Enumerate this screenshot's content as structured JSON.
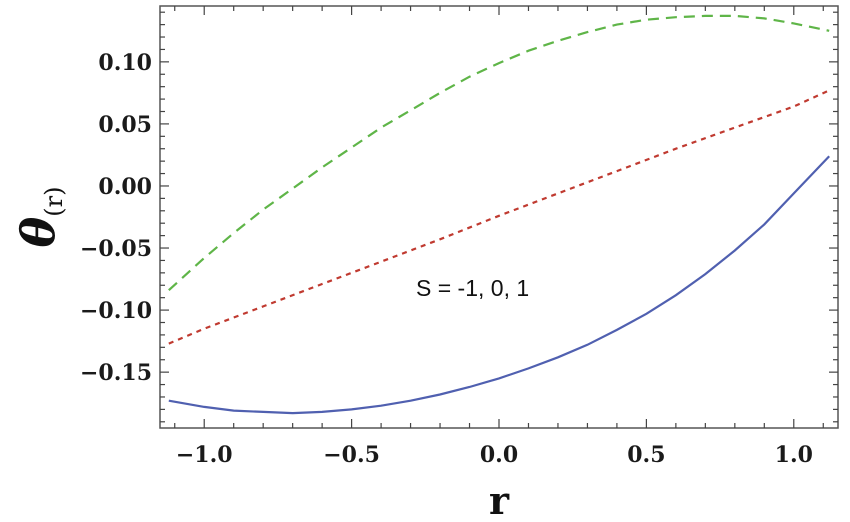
{
  "chart_data": {
    "type": "line",
    "xlabel": "r",
    "ylabel": {
      "symbol": "θ",
      "subscript": "(r)"
    },
    "xlim": [
      -1.15,
      1.15
    ],
    "ylim": [
      -0.195,
      0.145
    ],
    "xticks": [
      -1.0,
      -0.5,
      0.0,
      0.5,
      1.0
    ],
    "xtick_labels": [
      "−1.0",
      "−0.5",
      "0.0",
      "0.5",
      "1.0"
    ],
    "yticks": [
      -0.15,
      -0.1,
      -0.05,
      0.0,
      0.05,
      0.1
    ],
    "ytick_labels": [
      "−0.15",
      "−0.10",
      "−0.05",
      "0.00",
      "0.05",
      "0.10"
    ],
    "annotation": "S = -1, 0, 1",
    "grid": false,
    "series": [
      {
        "color": "#5060b0",
        "dash": "solid",
        "x": [
          -1.12,
          -1.0,
          -0.9,
          -0.8,
          -0.7,
          -0.6,
          -0.5,
          -0.4,
          -0.3,
          -0.2,
          -0.1,
          0.0,
          0.1,
          0.2,
          0.3,
          0.4,
          0.5,
          0.6,
          0.7,
          0.8,
          0.9,
          1.0,
          1.12
        ],
        "y": [
          -0.173,
          -0.178,
          -0.181,
          -0.182,
          -0.183,
          -0.182,
          -0.18,
          -0.177,
          -0.173,
          -0.168,
          -0.162,
          -0.155,
          -0.147,
          -0.138,
          -0.128,
          -0.116,
          -0.103,
          -0.088,
          -0.071,
          -0.052,
          -0.031,
          -0.006,
          0.024
        ]
      },
      {
        "color": "#c03a30",
        "dash": "dotted",
        "x": [
          -1.12,
          -1.0,
          -0.8,
          -0.6,
          -0.4,
          -0.2,
          0.0,
          0.2,
          0.4,
          0.6,
          0.8,
          1.0,
          1.12
        ],
        "y": [
          -0.127,
          -0.115,
          -0.097,
          -0.079,
          -0.061,
          -0.043,
          -0.024,
          -0.006,
          0.012,
          0.03,
          0.047,
          0.064,
          0.077
        ]
      },
      {
        "color": "#5fb548",
        "dash": "dashed",
        "x": [
          -1.12,
          -1.0,
          -0.9,
          -0.8,
          -0.7,
          -0.6,
          -0.5,
          -0.4,
          -0.3,
          -0.2,
          -0.1,
          0.0,
          0.1,
          0.2,
          0.3,
          0.4,
          0.5,
          0.6,
          0.7,
          0.8,
          0.9,
          1.0,
          1.12
        ],
        "y": [
          -0.084,
          -0.058,
          -0.038,
          -0.019,
          -0.002,
          0.015,
          0.031,
          0.047,
          0.061,
          0.075,
          0.088,
          0.099,
          0.109,
          0.117,
          0.124,
          0.13,
          0.134,
          0.136,
          0.137,
          0.137,
          0.135,
          0.131,
          0.125
        ]
      }
    ]
  }
}
